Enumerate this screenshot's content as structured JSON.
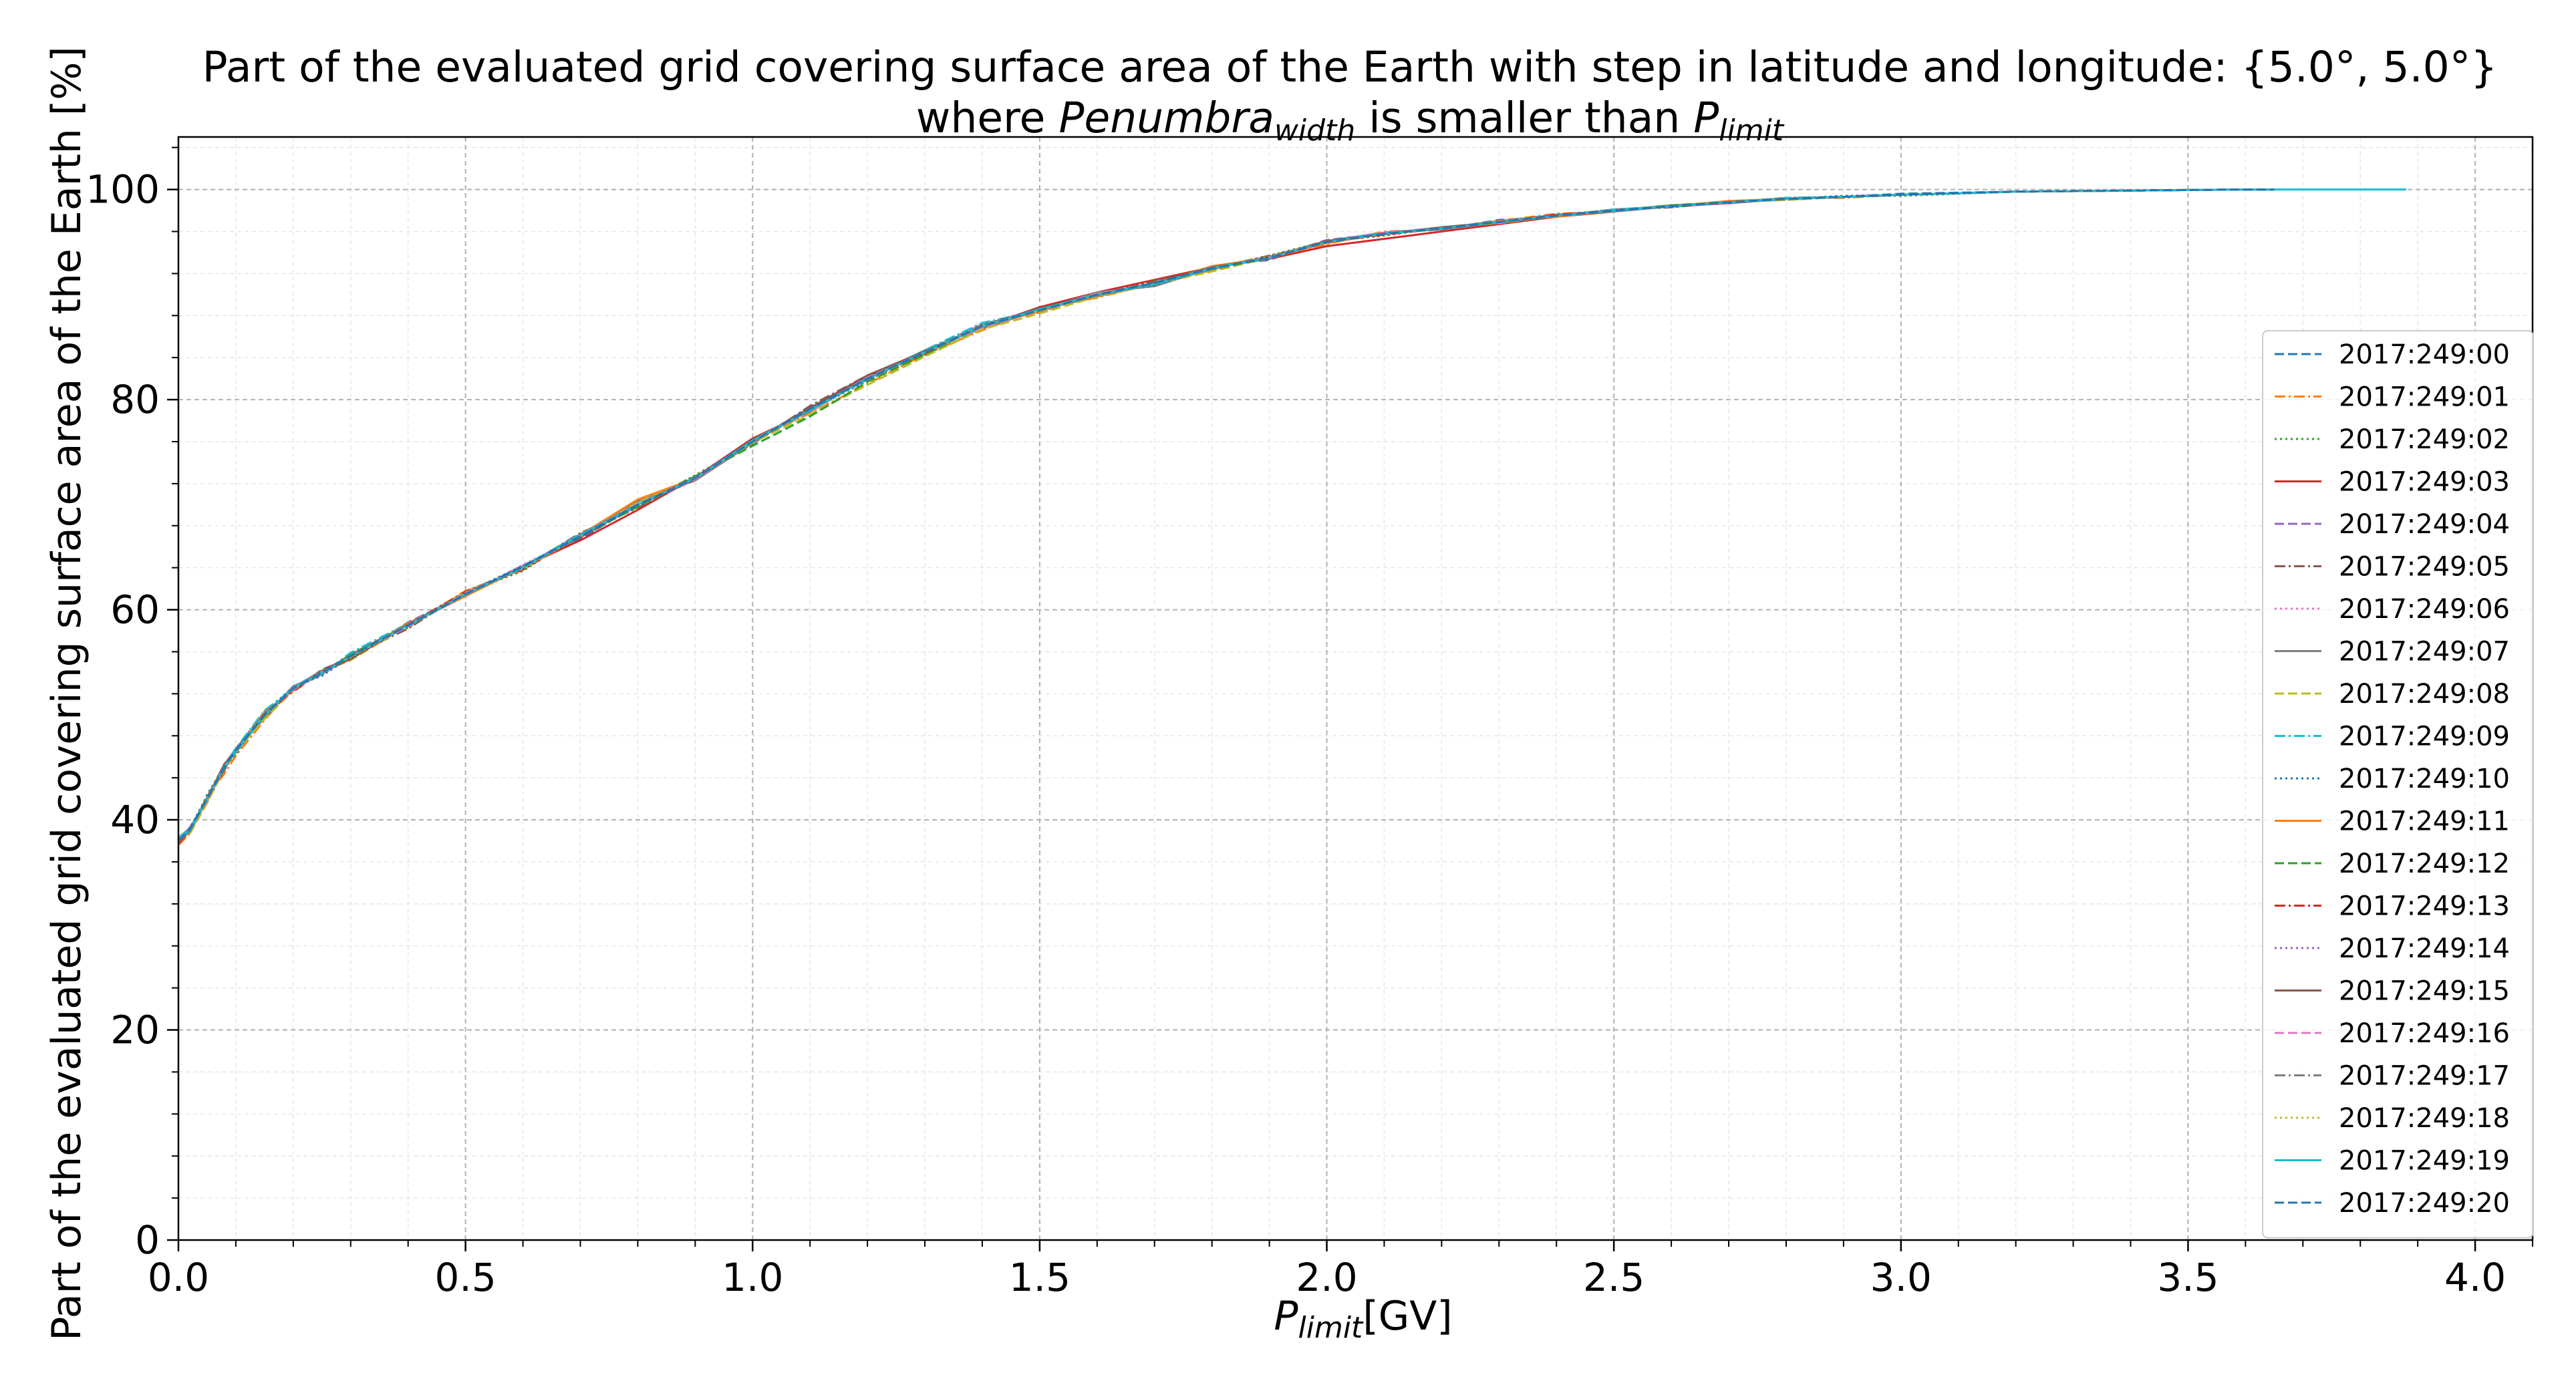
{
  "chart_data": {
    "type": "line",
    "title_line1": "Part of the evaluated grid covering surface area of the Earth with step in latitude and longitude: {5.0°, 5.0°}",
    "title_line2_pre": "where ",
    "title_line2_sym1": "Penumbra",
    "title_line2_sub1": "width",
    "title_line2_mid": " is smaller than ",
    "title_line2_sym2": "P",
    "title_line2_sub2": "limit",
    "xlabel_sym": "P",
    "xlabel_sub": "limit",
    "xlabel_unit": "[GV]",
    "ylabel": "Part of the evaluated grid covering surface area of the Earth  [%]",
    "xlim": [
      0,
      4.1
    ],
    "ylim": [
      0,
      105
    ],
    "xticks": [
      0.0,
      0.5,
      1.0,
      1.5,
      2.0,
      2.5,
      3.0,
      3.5,
      4.0
    ],
    "xtick_labels": [
      "0.0",
      "0.5",
      "1.0",
      "1.5",
      "2.0",
      "2.5",
      "3.0",
      "3.5",
      "4.0"
    ],
    "yticks": [
      0,
      20,
      40,
      60,
      80,
      100
    ],
    "ytick_labels": [
      "0",
      "20",
      "40",
      "60",
      "80",
      "100"
    ],
    "grid": true,
    "minor_grid": true,
    "legend_position": "center-right",
    "x": [
      0.0,
      0.02,
      0.05,
      0.08,
      0.1,
      0.15,
      0.2,
      0.25,
      0.3,
      0.4,
      0.5,
      0.6,
      0.7,
      0.8,
      0.9,
      1.0,
      1.1,
      1.2,
      1.3,
      1.4,
      1.5,
      1.6,
      1.7,
      1.8,
      1.9,
      2.0,
      2.1,
      2.2,
      2.3,
      2.4,
      2.5,
      2.6,
      2.7,
      2.8,
      2.9,
      3.0,
      3.2,
      3.4,
      3.6,
      3.8
    ],
    "base_curve": [
      38.0,
      39.0,
      42.0,
      45.0,
      46.5,
      50.0,
      52.5,
      54.0,
      55.5,
      58.5,
      61.5,
      64.0,
      67.0,
      70.0,
      72.5,
      76.0,
      79.0,
      82.0,
      84.5,
      87.0,
      88.5,
      90.0,
      91.0,
      92.5,
      93.5,
      95.0,
      95.8,
      96.3,
      96.9,
      97.5,
      98.0,
      98.4,
      98.8,
      99.1,
      99.3,
      99.5,
      99.8,
      99.9,
      100.0,
      100.0
    ],
    "series": [
      {
        "name": "2017:249:00",
        "color": "#1f77b4",
        "dash": "dashed",
        "x_end": 3.65,
        "offsets": [
          0.2,
          0.1,
          -0.3,
          -0.2,
          0.2,
          0.1,
          -0.2,
          0.3,
          -0.1,
          0.2,
          -0.1,
          0.2,
          -0.3,
          0.1,
          0.2,
          -0.2,
          0.3,
          -0.1,
          0.2,
          -0.3,
          0.1,
          0.2,
          -0.1,
          0.2,
          -0.2,
          0.1,
          0.1,
          -0.1,
          0.2,
          -0.1,
          0.1,
          0.0,
          0.1,
          -0.1,
          0.0,
          0.1,
          0.0,
          0.0,
          0.0,
          0.0
        ]
      },
      {
        "name": "2017:249:01",
        "color": "#ff7f0e",
        "dash": "dashdot",
        "x_end": 3.65,
        "offsets": [
          -0.4,
          -0.3,
          0.2,
          -0.6,
          -0.4,
          -0.5,
          0.1,
          -0.2,
          0.3,
          -0.1,
          0.3,
          -0.2,
          0.1,
          0.4,
          -0.1,
          0.2,
          -0.3,
          -0.5,
          -0.2,
          -0.4,
          0.2,
          -0.3,
          0.1,
          -0.2,
          0.1,
          -0.2,
          0.2,
          -0.1,
          0.1,
          0.2,
          -0.1,
          0.1,
          0.0,
          0.1,
          -0.1,
          0.0,
          0.0,
          0.0,
          0.0,
          0.0
        ]
      },
      {
        "name": "2017:249:02",
        "color": "#2ca02c",
        "dash": "dotted",
        "x_end": 3.65,
        "offsets": [
          0.1,
          -0.2,
          0.4,
          0.1,
          -0.3,
          0.2,
          -0.1,
          0.2,
          0.0,
          -0.2,
          0.1,
          -0.3,
          0.2,
          -0.1,
          0.3,
          -0.1,
          0.1,
          0.2,
          -0.3,
          0.1,
          -0.1,
          0.1,
          0.2,
          -0.1,
          0.2,
          0.1,
          -0.2,
          0.1,
          -0.1,
          0.0,
          0.1,
          -0.1,
          0.1,
          0.0,
          0.1,
          -0.1,
          0.0,
          0.0,
          0.0,
          0.0
        ]
      },
      {
        "name": "2017:249:03",
        "color": "#d62728",
        "dash": "solid",
        "x_end": 3.65,
        "offsets": [
          0.3,
          0.2,
          -0.1,
          0.3,
          0.1,
          -0.2,
          0.2,
          -0.1,
          0.2,
          0.1,
          -0.2,
          0.1,
          -0.4,
          -0.5,
          0.1,
          0.3,
          -0.1,
          0.2,
          0.1,
          -0.1,
          0.3,
          0.2,
          0.4,
          0.1,
          -0.1,
          -0.4,
          -0.5,
          -0.3,
          -0.2,
          -0.1,
          -0.1,
          0.0,
          -0.1,
          0.0,
          0.0,
          0.0,
          0.0,
          0.0,
          0.0,
          0.0
        ]
      },
      {
        "name": "2017:249:04",
        "color": "#9467bd",
        "dash": "dashed",
        "x_end": 3.65,
        "offsets": [
          -0.1,
          0.3,
          -0.2,
          0.2,
          0.3,
          -0.1,
          0.1,
          0.0,
          -0.2,
          0.3,
          -0.1,
          0.1,
          0.2,
          -0.2,
          -0.1,
          0.1,
          0.2,
          -0.1,
          0.1,
          0.2,
          -0.2,
          0.1,
          -0.1,
          0.1,
          -0.1,
          0.2,
          0.0,
          0.1,
          -0.1,
          0.1,
          0.0,
          0.1,
          -0.1,
          0.0,
          0.0,
          0.0,
          0.0,
          0.0,
          0.0,
          0.0
        ]
      },
      {
        "name": "2017:249:05",
        "color": "#8c564b",
        "dash": "dashdot",
        "x_end": 3.65,
        "offsets": [
          0.0,
          -0.1,
          0.1,
          -0.3,
          0.2,
          0.3,
          -0.3,
          0.1,
          0.1,
          -0.3,
          0.2,
          0.0,
          0.3,
          -0.3,
          0.0,
          -0.2,
          0.4,
          0.3,
          0.1,
          0.0,
          0.1,
          -0.2,
          0.3,
          0.0,
          0.2,
          -0.1,
          0.1,
          0.0,
          0.1,
          -0.1,
          0.1,
          -0.1,
          0.0,
          0.1,
          0.0,
          0.0,
          0.0,
          0.0,
          0.0,
          0.0
        ]
      },
      {
        "name": "2017:249:06",
        "color": "#e377c2",
        "dash": "dotted",
        "x_end": 3.65,
        "offsets": [
          0.2,
          0.0,
          -0.2,
          0.1,
          -0.1,
          0.2,
          0.0,
          -0.2,
          0.1,
          0.0,
          -0.2,
          0.3,
          -0.1,
          0.2,
          0.0,
          0.1,
          -0.2,
          0.1,
          0.0,
          0.2,
          -0.1,
          0.0,
          0.1,
          -0.1,
          0.0,
          0.1,
          -0.1,
          0.1,
          0.0,
          0.0,
          0.1,
          0.0,
          0.0,
          -0.1,
          0.0,
          0.0,
          0.0,
          0.0,
          0.0,
          0.0
        ]
      },
      {
        "name": "2017:249:07",
        "color": "#7f7f7f",
        "dash": "solid",
        "x_end": 3.65,
        "offsets": [
          -0.2,
          0.1,
          0.0,
          0.2,
          0.1,
          -0.3,
          0.1,
          0.2,
          -0.2,
          0.1,
          0.0,
          -0.1,
          0.1,
          0.3,
          -0.2,
          -0.1,
          0.1,
          0.0,
          0.2,
          -0.2,
          0.0,
          0.2,
          -0.2,
          0.0,
          0.1,
          0.0,
          0.1,
          -0.1,
          0.0,
          0.1,
          -0.1,
          0.0,
          0.1,
          0.0,
          0.0,
          0.0,
          0.0,
          0.0,
          0.0,
          0.0
        ]
      },
      {
        "name": "2017:249:08",
        "color": "#bcbd22",
        "dash": "dashed",
        "x_end": 3.65,
        "offsets": [
          0.1,
          -0.3,
          -0.4,
          -0.1,
          0.0,
          -0.4,
          -0.2,
          0.1,
          -0.3,
          0.0,
          0.2,
          -0.1,
          0.0,
          0.2,
          0.1,
          -0.1,
          -0.4,
          -0.6,
          -0.4,
          -0.3,
          -0.3,
          -0.2,
          0.0,
          -0.3,
          0.0,
          0.1,
          0.0,
          0.1,
          -0.1,
          0.0,
          0.0,
          0.1,
          0.0,
          -0.1,
          0.0,
          0.0,
          0.0,
          0.0,
          0.0,
          0.0
        ]
      },
      {
        "name": "2017:249:09",
        "color": "#17becf",
        "dash": "dashdot",
        "x_end": 3.65,
        "offsets": [
          0.3,
          0.2,
          0.1,
          0.2,
          0.3,
          0.4,
          0.0,
          -0.1,
          0.4,
          0.2,
          0.0,
          0.1,
          0.2,
          0.0,
          0.1,
          0.0,
          0.2,
          0.1,
          0.2,
          0.3,
          0.0,
          0.1,
          0.0,
          0.1,
          0.0,
          0.1,
          0.1,
          0.0,
          0.1,
          0.0,
          0.1,
          0.0,
          0.0,
          0.1,
          0.0,
          0.0,
          0.0,
          0.0,
          0.0,
          0.0
        ]
      },
      {
        "name": "2017:249:10",
        "color": "#1f77b4",
        "dash": "dotted",
        "x_end": 3.65,
        "offsets": [
          -0.1,
          0.2,
          0.3,
          0.0,
          -0.2,
          0.1,
          0.2,
          -0.3,
          0.0,
          0.1,
          0.1,
          0.2,
          -0.2,
          -0.1,
          0.1,
          0.2,
          0.0,
          -0.2,
          0.1,
          0.1,
          0.2,
          0.0,
          -0.1,
          0.0,
          0.1,
          0.0,
          0.0,
          0.1,
          0.0,
          0.1,
          0.0,
          0.0,
          0.0,
          0.0,
          0.1,
          0.0,
          0.0,
          0.0,
          0.0,
          0.0
        ]
      },
      {
        "name": "2017:249:11",
        "color": "#ff7f0e",
        "dash": "solid",
        "x_end": 3.65,
        "offsets": [
          0.0,
          0.1,
          -0.2,
          0.1,
          0.0,
          0.2,
          -0.1,
          0.1,
          -0.1,
          0.2,
          -0.2,
          0.0,
          0.1,
          0.5,
          0.0,
          0.1,
          0.1,
          0.0,
          -0.1,
          0.0,
          -0.1,
          0.1,
          0.0,
          0.2,
          0.0,
          -0.1,
          0.0,
          0.0,
          0.1,
          -0.1,
          0.0,
          0.0,
          0.1,
          0.0,
          0.0,
          0.0,
          0.0,
          0.0,
          0.0,
          0.0
        ]
      },
      {
        "name": "2017:249:12",
        "color": "#2ca02c",
        "dash": "dashed",
        "x_end": 3.65,
        "offsets": [
          0.1,
          0.0,
          0.2,
          -0.1,
          0.1,
          -0.1,
          0.1,
          0.0,
          0.2,
          -0.1,
          0.0,
          0.1,
          0.0,
          -0.2,
          0.2,
          -0.4,
          -0.6,
          -0.3,
          -0.2,
          0.0,
          0.1,
          0.0,
          0.1,
          -0.1,
          0.0,
          0.0,
          0.1,
          0.0,
          0.0,
          0.0,
          0.0,
          0.1,
          0.0,
          0.0,
          0.0,
          0.0,
          0.0,
          0.0,
          0.0,
          0.0
        ]
      },
      {
        "name": "2017:249:13",
        "color": "#d62728",
        "dash": "dashdot",
        "x_end": 3.65,
        "offsets": [
          -0.3,
          0.0,
          0.1,
          0.3,
          0.0,
          0.0,
          -0.2,
          0.2,
          0.0,
          0.1,
          0.2,
          -0.2,
          0.1,
          0.0,
          -0.1,
          0.1,
          0.0,
          0.1,
          -0.1,
          0.1,
          0.1,
          -0.1,
          0.1,
          0.0,
          0.1,
          0.0,
          -0.1,
          0.0,
          0.0,
          0.1,
          0.0,
          0.0,
          0.0,
          0.0,
          0.0,
          0.0,
          0.0,
          0.0,
          0.0,
          0.0
        ]
      },
      {
        "name": "2017:249:14",
        "color": "#9467bd",
        "dash": "dotted",
        "x_end": 3.65,
        "offsets": [
          0.1,
          0.1,
          0.0,
          -0.1,
          0.2,
          0.0,
          0.1,
          -0.1,
          0.1,
          0.0,
          -0.1,
          0.0,
          0.2,
          0.1,
          0.0,
          0.0,
          0.1,
          -0.1,
          0.0,
          0.1,
          0.0,
          0.1,
          0.0,
          -0.1,
          0.1,
          0.1,
          0.0,
          0.0,
          0.1,
          0.0,
          0.0,
          0.0,
          0.0,
          0.0,
          0.0,
          0.0,
          0.0,
          0.0,
          0.0,
          0.0
        ]
      },
      {
        "name": "2017:249:15",
        "color": "#8c564b",
        "dash": "solid",
        "x_end": 3.65,
        "offsets": [
          0.0,
          -0.1,
          0.1,
          0.2,
          -0.1,
          0.1,
          0.0,
          0.1,
          -0.2,
          0.1,
          0.0,
          0.1,
          -0.1,
          0.0,
          0.1,
          0.0,
          0.2,
          0.3,
          0.1,
          0.0,
          0.2,
          0.0,
          0.1,
          0.1,
          0.0,
          0.1,
          0.0,
          0.1,
          0.0,
          0.0,
          0.0,
          0.0,
          0.0,
          0.0,
          0.0,
          0.0,
          0.0,
          0.0,
          0.0,
          0.0
        ]
      },
      {
        "name": "2017:249:16",
        "color": "#e377c2",
        "dash": "dashed",
        "x_end": 3.65,
        "offsets": [
          0.2,
          0.0,
          -0.1,
          0.0,
          0.1,
          0.0,
          -0.1,
          0.0,
          0.1,
          -0.1,
          0.1,
          0.0,
          0.0,
          0.1,
          -0.1,
          0.0,
          0.0,
          0.1,
          0.0,
          -0.1,
          0.0,
          0.1,
          0.0,
          0.0,
          0.0,
          0.0,
          0.1,
          0.0,
          0.0,
          0.0,
          0.0,
          0.0,
          0.0,
          0.0,
          0.0,
          0.0,
          0.0,
          0.0,
          0.0,
          0.0
        ]
      },
      {
        "name": "2017:249:17",
        "color": "#7f7f7f",
        "dash": "dashdot",
        "x_end": 3.65,
        "offsets": [
          -0.1,
          0.1,
          0.0,
          0.1,
          0.0,
          -0.1,
          0.1,
          0.0,
          0.0,
          0.1,
          -0.1,
          0.1,
          0.0,
          0.0,
          0.1,
          0.0,
          -0.1,
          0.0,
          0.1,
          0.0,
          0.0,
          -0.1,
          0.0,
          0.1,
          0.0,
          0.0,
          0.0,
          0.0,
          0.0,
          0.0,
          0.0,
          0.0,
          0.0,
          0.0,
          0.0,
          0.0,
          0.0,
          0.0,
          0.0,
          0.0
        ]
      },
      {
        "name": "2017:249:18",
        "color": "#bcbd22",
        "dash": "dotted",
        "x_end": 3.65,
        "offsets": [
          0.0,
          0.0,
          0.1,
          0.0,
          -0.1,
          0.0,
          0.0,
          0.1,
          0.0,
          0.0,
          0.1,
          -0.1,
          0.0,
          0.1,
          0.0,
          0.0,
          0.0,
          0.0,
          0.0,
          0.1,
          0.0,
          0.0,
          0.0,
          0.0,
          0.1,
          0.0,
          0.0,
          0.0,
          0.0,
          0.0,
          0.0,
          0.0,
          0.0,
          0.0,
          0.0,
          0.0,
          0.0,
          0.0,
          0.0,
          0.0
        ]
      },
      {
        "name": "2017:249:19",
        "color": "#17becf",
        "dash": "solid",
        "x_end": 3.88,
        "offsets": [
          0.1,
          0.0,
          0.0,
          0.1,
          0.0,
          0.0,
          0.1,
          0.0,
          0.1,
          0.0,
          0.0,
          0.0,
          0.1,
          0.0,
          0.0,
          0.1,
          0.0,
          0.0,
          0.0,
          0.0,
          0.1,
          0.0,
          0.0,
          0.0,
          0.0,
          0.0,
          0.0,
          0.0,
          0.0,
          0.0,
          0.0,
          0.0,
          0.0,
          0.0,
          0.0,
          0.0,
          0.0,
          0.0,
          0.0,
          0.0
        ]
      },
      {
        "name": "2017:249:20",
        "color": "#1f77b4",
        "dash": "dashed",
        "x_end": 3.65,
        "offsets": [
          0.0,
          0.1,
          0.0,
          0.0,
          0.1,
          0.0,
          0.0,
          0.0,
          0.1,
          0.0,
          0.0,
          0.1,
          0.0,
          0.0,
          0.0,
          0.0,
          0.1,
          0.0,
          0.0,
          0.0,
          0.0,
          0.0,
          0.1,
          0.0,
          0.0,
          0.0,
          0.0,
          0.0,
          0.0,
          0.0,
          0.0,
          0.0,
          0.0,
          0.0,
          0.0,
          0.0,
          0.0,
          0.0,
          0.0,
          0.0
        ]
      }
    ]
  }
}
